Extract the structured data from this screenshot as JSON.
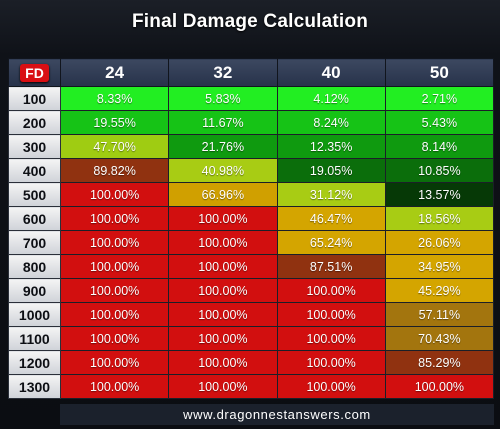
{
  "title": "Final Damage Calculation",
  "corner_label": "FD",
  "columns": [
    "24",
    "32",
    "40",
    "50"
  ],
  "rows": [
    {
      "fd": "100",
      "cells": [
        {
          "v": "8.33%",
          "c": "#22ee22"
        },
        {
          "v": "5.83%",
          "c": "#22ee22"
        },
        {
          "v": "4.12%",
          "c": "#22ee22"
        },
        {
          "v": "2.71%",
          "c": "#22ee22"
        }
      ]
    },
    {
      "fd": "200",
      "cells": [
        {
          "v": "19.55%",
          "c": "#16c316"
        },
        {
          "v": "11.67%",
          "c": "#16c316"
        },
        {
          "v": "8.24%",
          "c": "#16c316"
        },
        {
          "v": "5.43%",
          "c": "#16c316"
        }
      ]
    },
    {
      "fd": "300",
      "cells": [
        {
          "v": "47.70%",
          "c": "#9fcc12"
        },
        {
          "v": "21.76%",
          "c": "#0f9a0f"
        },
        {
          "v": "12.35%",
          "c": "#0f9a0f"
        },
        {
          "v": "8.14%",
          "c": "#0f9a0f"
        }
      ]
    },
    {
      "fd": "400",
      "cells": [
        {
          "v": "89.82%",
          "c": "#903210"
        },
        {
          "v": "40.98%",
          "c": "#a8cc14"
        },
        {
          "v": "19.05%",
          "c": "#0b6e0b"
        },
        {
          "v": "10.85%",
          "c": "#0b6e0b"
        }
      ]
    },
    {
      "fd": "500",
      "cells": [
        {
          "v": "100.00%",
          "c": "#d20f0f"
        },
        {
          "v": "66.96%",
          "c": "#d0a000"
        },
        {
          "v": "31.12%",
          "c": "#a8cc14"
        },
        {
          "v": "13.57%",
          "c": "#063906"
        }
      ]
    },
    {
      "fd": "600",
      "cells": [
        {
          "v": "100.00%",
          "c": "#d20f0f"
        },
        {
          "v": "100.00%",
          "c": "#d20f0f"
        },
        {
          "v": "46.47%",
          "c": "#d4a500"
        },
        {
          "v": "18.56%",
          "c": "#a8cc14"
        }
      ]
    },
    {
      "fd": "700",
      "cells": [
        {
          "v": "100.00%",
          "c": "#d20f0f"
        },
        {
          "v": "100.00%",
          "c": "#d20f0f"
        },
        {
          "v": "65.24%",
          "c": "#d4a500"
        },
        {
          "v": "26.06%",
          "c": "#d4a500"
        }
      ]
    },
    {
      "fd": "800",
      "cells": [
        {
          "v": "100.00%",
          "c": "#d20f0f"
        },
        {
          "v": "100.00%",
          "c": "#d20f0f"
        },
        {
          "v": "87.51%",
          "c": "#903210"
        },
        {
          "v": "34.95%",
          "c": "#d4a500"
        }
      ]
    },
    {
      "fd": "900",
      "cells": [
        {
          "v": "100.00%",
          "c": "#d20f0f"
        },
        {
          "v": "100.00%",
          "c": "#d20f0f"
        },
        {
          "v": "100.00%",
          "c": "#d20f0f"
        },
        {
          "v": "45.29%",
          "c": "#d4a500"
        }
      ]
    },
    {
      "fd": "1000",
      "cells": [
        {
          "v": "100.00%",
          "c": "#d20f0f"
        },
        {
          "v": "100.00%",
          "c": "#d20f0f"
        },
        {
          "v": "100.00%",
          "c": "#d20f0f"
        },
        {
          "v": "57.11%",
          "c": "#a3750e"
        }
      ]
    },
    {
      "fd": "1100",
      "cells": [
        {
          "v": "100.00%",
          "c": "#d20f0f"
        },
        {
          "v": "100.00%",
          "c": "#d20f0f"
        },
        {
          "v": "100.00%",
          "c": "#d20f0f"
        },
        {
          "v": "70.43%",
          "c": "#a3750e"
        }
      ]
    },
    {
      "fd": "1200",
      "cells": [
        {
          "v": "100.00%",
          "c": "#d20f0f"
        },
        {
          "v": "100.00%",
          "c": "#d20f0f"
        },
        {
          "v": "100.00%",
          "c": "#d20f0f"
        },
        {
          "v": "85.29%",
          "c": "#903210"
        }
      ]
    },
    {
      "fd": "1300",
      "cells": [
        {
          "v": "100.00%",
          "c": "#d20f0f"
        },
        {
          "v": "100.00%",
          "c": "#d20f0f"
        },
        {
          "v": "100.00%",
          "c": "#d20f0f"
        },
        {
          "v": "100.00%",
          "c": "#d20f0f"
        }
      ]
    }
  ],
  "footer": "www.dragonnestanswers.com"
}
